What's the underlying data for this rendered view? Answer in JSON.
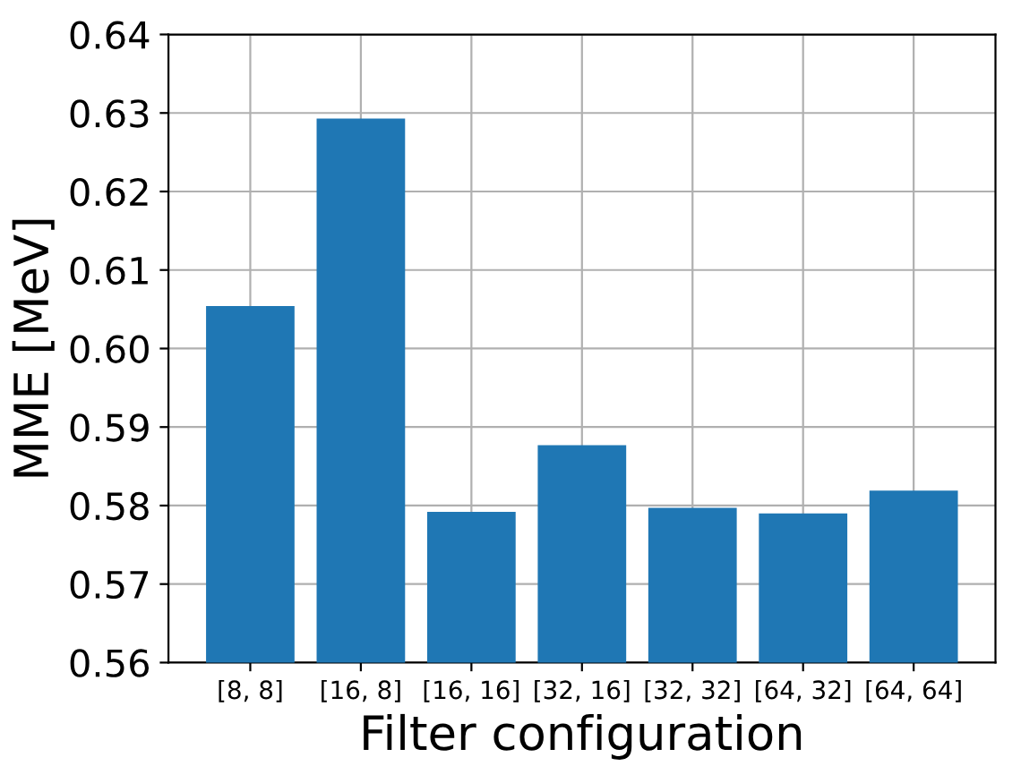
{
  "chart_data": {
    "type": "bar",
    "xlabel": "Filter configuration",
    "ylabel": "MME [MeV]",
    "categories": [
      "[8, 8]",
      "[16, 8]",
      "[16, 16]",
      "[32, 16]",
      "[32, 32]",
      "[64, 32]",
      "[64, 64]"
    ],
    "values": [
      0.6054,
      0.6293,
      0.5792,
      0.5877,
      0.5797,
      0.579,
      0.5819
    ],
    "color": "#1f77b4",
    "ylim": [
      0.56,
      0.64
    ],
    "yticks": [
      {
        "value": 0.56,
        "label": "0.56"
      },
      {
        "value": 0.57,
        "label": "0.57"
      },
      {
        "value": 0.58,
        "label": "0.58"
      },
      {
        "value": 0.59,
        "label": "0.59"
      },
      {
        "value": 0.6,
        "label": "0.60"
      },
      {
        "value": 0.61,
        "label": "0.61"
      },
      {
        "value": 0.62,
        "label": "0.62"
      },
      {
        "value": 0.63,
        "label": "0.63"
      },
      {
        "value": 0.64,
        "label": "0.64"
      }
    ],
    "grid": true
  }
}
